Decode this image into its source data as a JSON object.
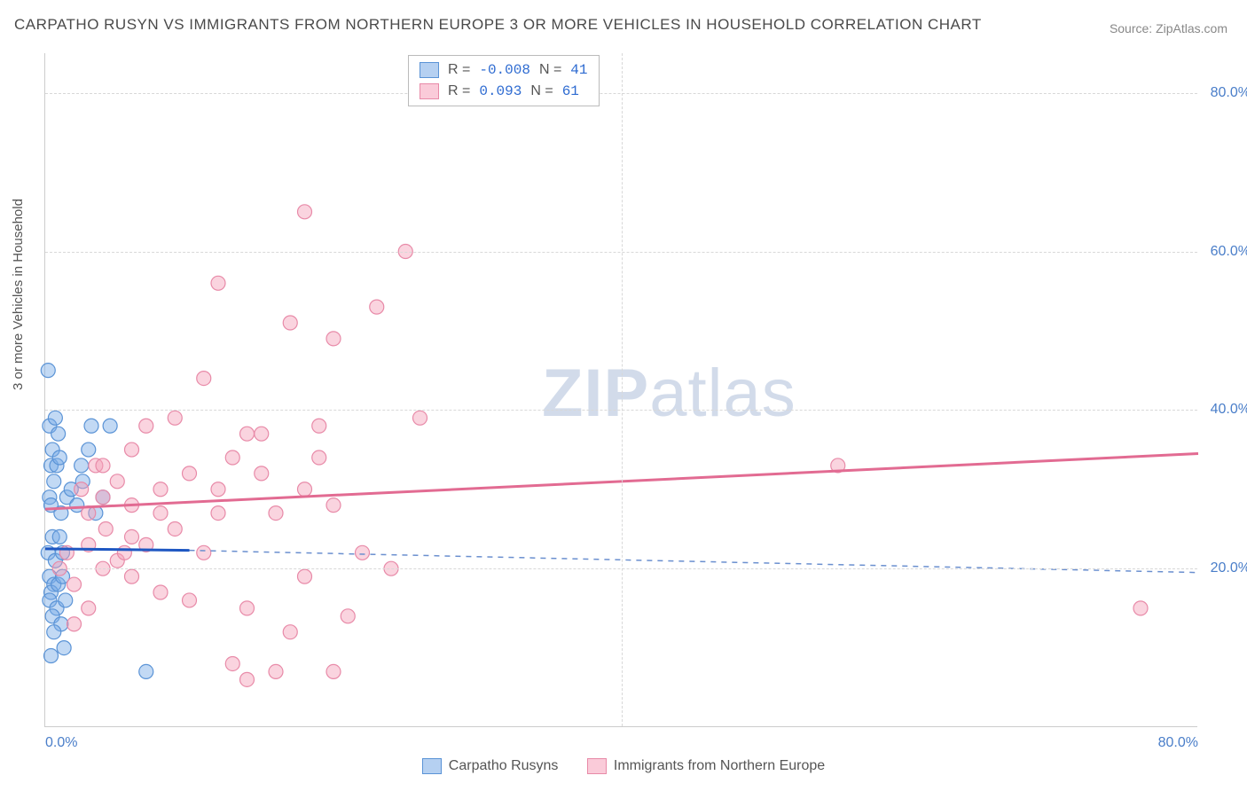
{
  "title": "CARPATHO RUSYN VS IMMIGRANTS FROM NORTHERN EUROPE 3 OR MORE VEHICLES IN HOUSEHOLD CORRELATION CHART",
  "source": "Source: ZipAtlas.com",
  "ylabel": "3 or more Vehicles in Household",
  "watermark_a": "ZIP",
  "watermark_b": "atlas",
  "colors": {
    "blue_fill": "rgba(120,170,230,0.45)",
    "blue_stroke": "#5a93d6",
    "pink_fill": "rgba(245,160,185,0.45)",
    "pink_stroke": "#e88aa8",
    "trend_blue": "#1e57c2",
    "trend_blue_dash": "#6a8fcf",
    "trend_pink": "#e26b92",
    "grid": "#d8d8d8",
    "axis_text": "#4a7ec9"
  },
  "chart": {
    "type": "scatter-correlation",
    "xlim": [
      0,
      80
    ],
    "ylim": [
      0,
      85
    ],
    "x_ticks": [
      0,
      80
    ],
    "x_tick_labels": [
      "0.0%",
      "80.0%"
    ],
    "y_ticks": [
      20,
      40,
      60,
      80
    ],
    "y_tick_labels": [
      "20.0%",
      "40.0%",
      "60.0%",
      "80.0%"
    ],
    "x_minor_grid": [
      40
    ],
    "marker_radius": 8,
    "series": [
      {
        "name": "Carpatho Rusyns",
        "color_key": "blue",
        "r": -0.008,
        "n": 41,
        "trend_start_y": 22.5,
        "trend_end_solid_x": 10,
        "trend_end_solid_y": 22.3,
        "trend_end_y": 19.5,
        "points": [
          [
            0.2,
            45
          ],
          [
            0.3,
            38
          ],
          [
            0.5,
            35
          ],
          [
            0.4,
            33
          ],
          [
            0.6,
            31
          ],
          [
            0.3,
            29
          ],
          [
            0.8,
            33
          ],
          [
            0.4,
            28
          ],
          [
            0.5,
            24
          ],
          [
            0.2,
            22
          ],
          [
            0.7,
            21
          ],
          [
            0.3,
            19
          ],
          [
            0.6,
            18
          ],
          [
            0.4,
            17
          ],
          [
            0.9,
            18
          ],
          [
            0.3,
            16
          ],
          [
            0.8,
            15
          ],
          [
            0.5,
            14
          ],
          [
            1.1,
            13
          ],
          [
            0.6,
            12
          ],
          [
            1.3,
            10
          ],
          [
            1.0,
            24
          ],
          [
            1.2,
            22
          ],
          [
            1.1,
            27
          ],
          [
            1.5,
            29
          ],
          [
            1.8,
            30
          ],
          [
            2.2,
            28
          ],
          [
            2.5,
            33
          ],
          [
            2.6,
            31
          ],
          [
            3.0,
            35
          ],
          [
            3.2,
            38
          ],
          [
            3.5,
            27
          ],
          [
            4.5,
            38
          ],
          [
            4.0,
            29
          ],
          [
            7.0,
            7
          ],
          [
            1.0,
            34
          ],
          [
            0.9,
            37
          ],
          [
            0.7,
            39
          ],
          [
            1.2,
            19
          ],
          [
            1.4,
            16
          ],
          [
            0.4,
            9
          ]
        ]
      },
      {
        "name": "Immigrants from Northern Europe",
        "color_key": "pink",
        "r": 0.093,
        "n": 61,
        "trend_start_y": 27.5,
        "trend_end_solid_x": 80,
        "trend_end_solid_y": 34.5,
        "trend_end_y": 34.5,
        "points": [
          [
            18,
            65
          ],
          [
            25,
            60
          ],
          [
            23,
            53
          ],
          [
            20,
            49
          ],
          [
            12,
            56
          ],
          [
            17,
            51
          ],
          [
            26,
            39
          ],
          [
            19,
            38
          ],
          [
            11,
            44
          ],
          [
            14,
            37
          ],
          [
            9,
            39
          ],
          [
            7,
            38
          ],
          [
            6,
            35
          ],
          [
            15,
            37
          ],
          [
            13,
            34
          ],
          [
            10,
            32
          ],
          [
            8,
            30
          ],
          [
            5,
            31
          ],
          [
            4,
            29
          ],
          [
            6,
            28
          ],
          [
            12,
            30
          ],
          [
            18,
            30
          ],
          [
            16,
            27
          ],
          [
            20,
            28
          ],
          [
            22,
            22
          ],
          [
            24,
            20
          ],
          [
            9,
            25
          ],
          [
            7,
            23
          ],
          [
            11,
            22
          ],
          [
            5,
            21
          ],
          [
            3,
            23
          ],
          [
            4,
            20
          ],
          [
            6,
            19
          ],
          [
            8,
            17
          ],
          [
            10,
            16
          ],
          [
            14,
            15
          ],
          [
            18,
            19
          ],
          [
            13,
            8
          ],
          [
            14,
            6
          ],
          [
            16,
            7
          ],
          [
            17,
            12
          ],
          [
            20,
            7
          ],
          [
            2,
            18
          ],
          [
            3,
            15
          ],
          [
            2,
            13
          ],
          [
            1,
            20
          ],
          [
            1.5,
            22
          ],
          [
            3.5,
            33
          ],
          [
            4,
            33
          ],
          [
            55,
            33
          ],
          [
            76,
            15
          ],
          [
            6,
            24
          ],
          [
            8,
            27
          ],
          [
            2.5,
            30
          ],
          [
            3,
            27
          ],
          [
            4.2,
            25
          ],
          [
            5.5,
            22
          ],
          [
            12,
            27
          ],
          [
            15,
            32
          ],
          [
            19,
            34
          ],
          [
            21,
            14
          ]
        ]
      }
    ]
  },
  "legend_top": {
    "rows": [
      {
        "swatch": "blue",
        "label_r": "R = ",
        "val_r": "-0.008",
        "label_n": "N = ",
        "val_n": "41"
      },
      {
        "swatch": "pink",
        "label_r": "R = ",
        "val_r": " 0.093",
        "label_n": "N = ",
        "val_n": "61"
      }
    ]
  },
  "legend_bottom": [
    {
      "swatch": "blue",
      "label": "Carpatho Rusyns"
    },
    {
      "swatch": "pink",
      "label": "Immigrants from Northern Europe"
    }
  ]
}
